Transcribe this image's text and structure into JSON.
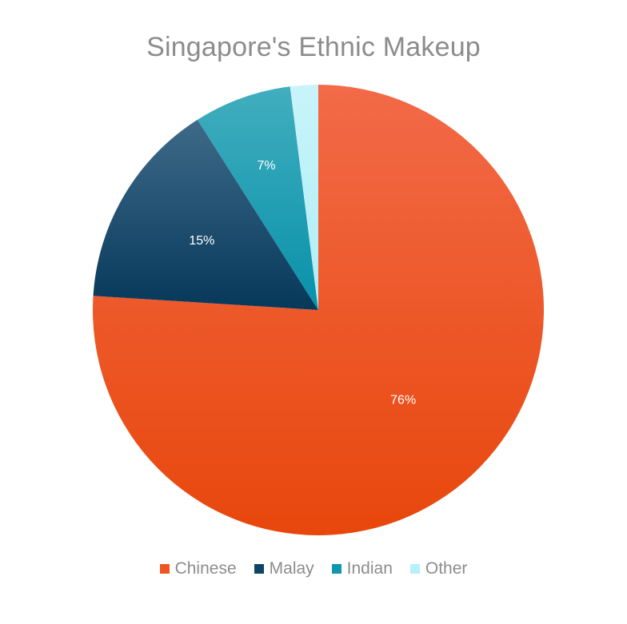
{
  "chart_data": {
    "type": "pie",
    "title": "Singapore's Ethnic Makeup",
    "categories": [
      "Chinese",
      "Malay",
      "Indian",
      "Other"
    ],
    "values": [
      76,
      15,
      7,
      2
    ],
    "data_labels": [
      "76%",
      "15%",
      "7%",
      ""
    ],
    "colors": [
      "#ee5620",
      "#0e4466",
      "#0f97b0",
      "#b8f0f8"
    ],
    "legend_position": "bottom"
  }
}
